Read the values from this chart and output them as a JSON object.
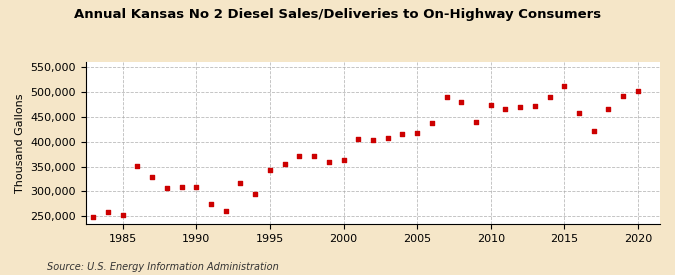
{
  "title": "Annual Kansas No 2 Diesel Sales/Deliveries to On-Highway Consumers",
  "ylabel": "Thousand Gallons",
  "source": "Source: U.S. Energy Information Administration",
  "background_color": "#f5e6c8",
  "plot_background_color": "#ffffff",
  "marker_color": "#cc0000",
  "years": [
    1983,
    1984,
    1985,
    1986,
    1987,
    1988,
    1989,
    1990,
    1991,
    1992,
    1993,
    1994,
    1995,
    1996,
    1997,
    1998,
    1999,
    2000,
    2001,
    2002,
    2003,
    2004,
    2005,
    2006,
    2007,
    2008,
    2009,
    2010,
    2011,
    2012,
    2013,
    2014,
    2015,
    2016,
    2017,
    2018,
    2019,
    2020
  ],
  "values": [
    248000,
    258000,
    252000,
    352000,
    330000,
    306000,
    310000,
    308000,
    275000,
    260000,
    318000,
    295000,
    343000,
    355000,
    372000,
    372000,
    360000,
    363000,
    405000,
    403000,
    408000,
    416000,
    418000,
    438000,
    490000,
    480000,
    440000,
    473000,
    465000,
    470000,
    472000,
    490000,
    513000,
    458000,
    422000,
    465000,
    493000,
    502000
  ],
  "ylim": [
    235000,
    560000
  ],
  "yticks": [
    250000,
    300000,
    350000,
    400000,
    450000,
    500000,
    550000
  ],
  "xticks": [
    1985,
    1990,
    1995,
    2000,
    2005,
    2010,
    2015,
    2020
  ],
  "xlim": [
    1982.5,
    2021.5
  ]
}
